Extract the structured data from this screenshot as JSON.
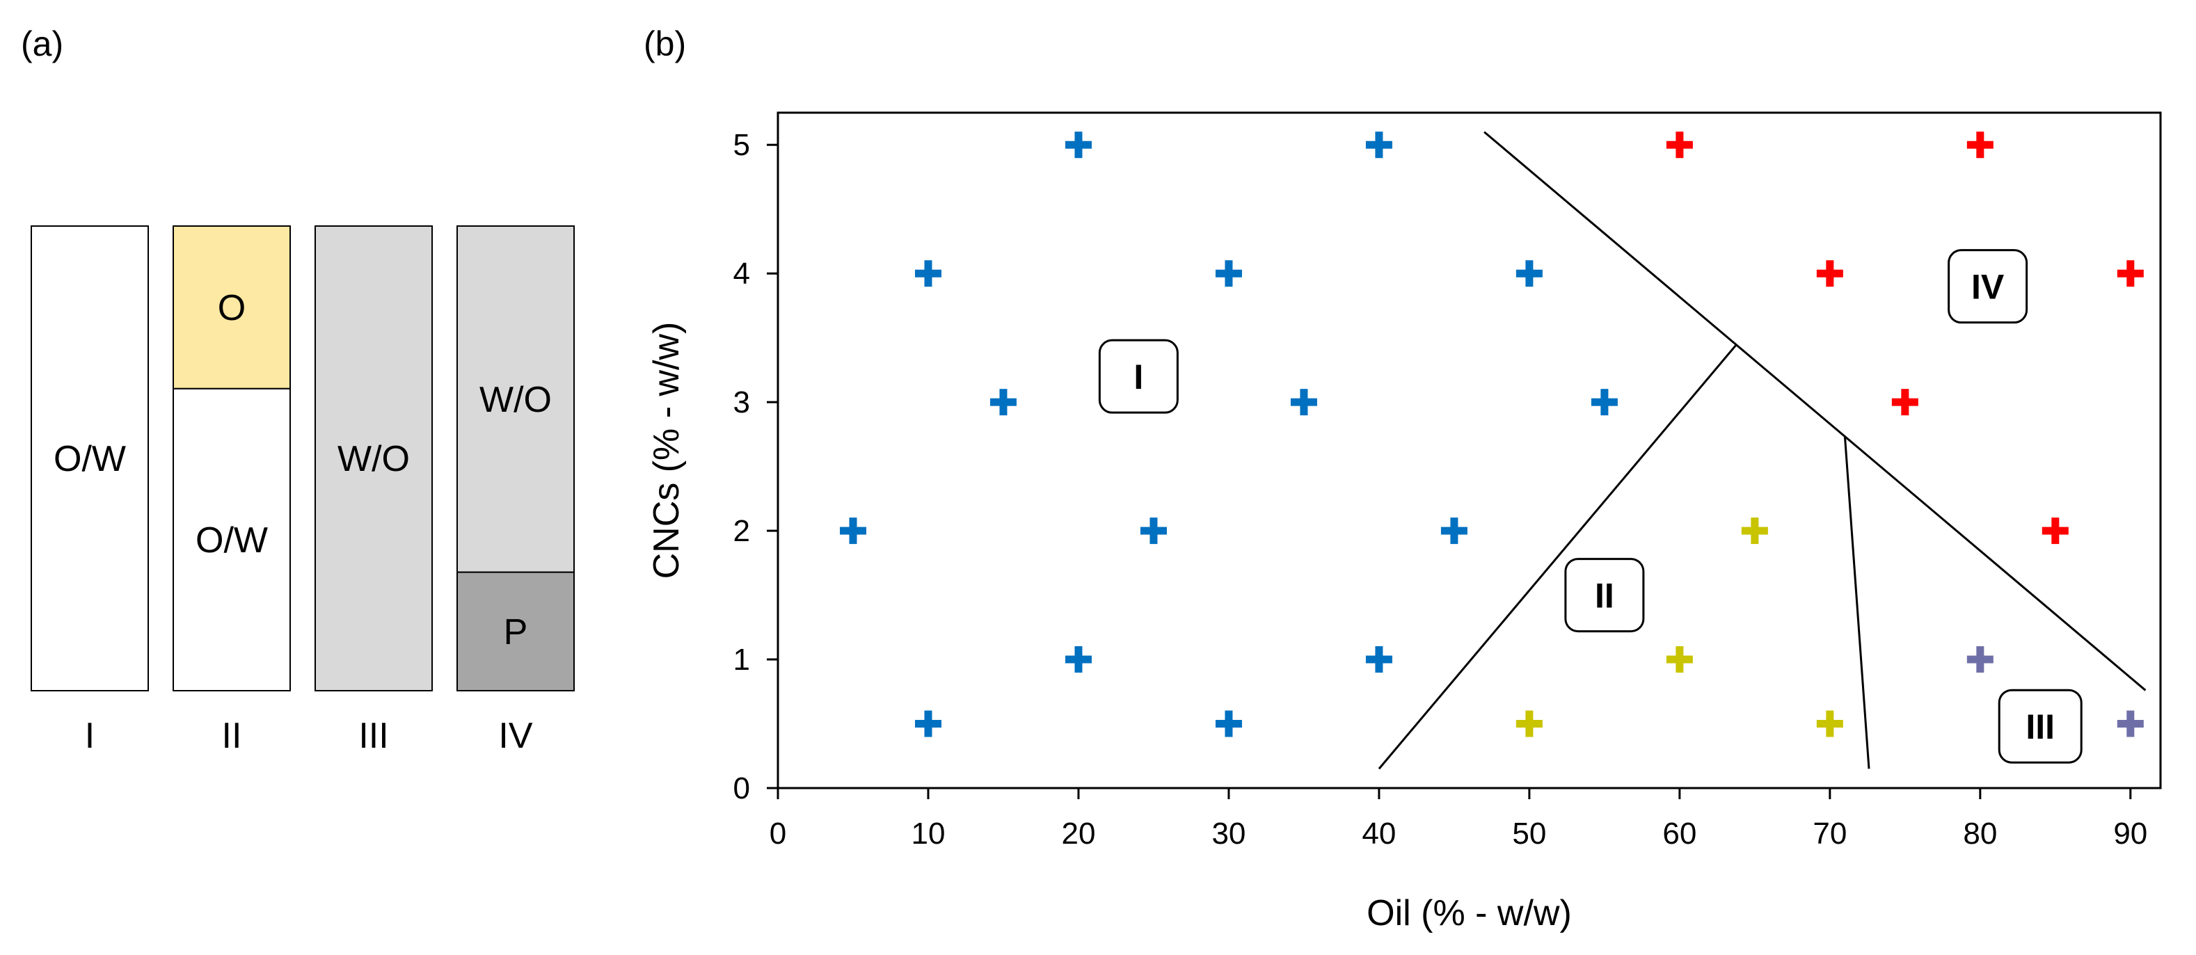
{
  "panel_a": {
    "label": "(a)",
    "tubes": [
      {
        "id": "I",
        "numeral": "I",
        "layers": [
          {
            "text": "O/W",
            "fraction": 1.0,
            "color": "#ffffff"
          }
        ]
      },
      {
        "id": "II",
        "numeral": "II",
        "layers": [
          {
            "text": "O",
            "fraction": 0.35,
            "color": "#fde9a3"
          },
          {
            "text": "O/W",
            "fraction": 0.65,
            "color": "#ffffff"
          }
        ]
      },
      {
        "id": "III",
        "numeral": "III",
        "layers": [
          {
            "text": "W/O",
            "fraction": 1.0,
            "color": "#d9d9d9"
          }
        ]
      },
      {
        "id": "IV",
        "numeral": "IV",
        "layers": [
          {
            "text": "W/O",
            "fraction": 0.745,
            "color": "#d9d9d9"
          },
          {
            "text": "P",
            "fraction": 0.255,
            "color": "#a6a6a6"
          }
        ]
      }
    ]
  },
  "chart_data": {
    "type": "scatter",
    "panel_label": "(b)",
    "title": "",
    "xlabel": "Oil (% - w/w)",
    "ylabel": "CNCs (% - w/w)",
    "xlim": [
      0,
      92
    ],
    "ylim": [
      0,
      5.25
    ],
    "xticks": [
      "0",
      "10",
      "20",
      "30",
      "40",
      "50",
      "60",
      "70",
      "80",
      "90"
    ],
    "yticks": [
      "0",
      "1",
      "2",
      "3",
      "4",
      "5"
    ],
    "grid": false,
    "marker": "plus",
    "colors": {
      "I": "#0070c0",
      "II": "#c9c400",
      "III": "#6f6fa8",
      "IV": "#ff0000"
    },
    "points": [
      {
        "x": 20,
        "y": 5,
        "region": "I"
      },
      {
        "x": 40,
        "y": 5,
        "region": "I"
      },
      {
        "x": 10,
        "y": 4,
        "region": "I"
      },
      {
        "x": 30,
        "y": 4,
        "region": "I"
      },
      {
        "x": 50,
        "y": 4,
        "region": "I"
      },
      {
        "x": 15,
        "y": 3,
        "region": "I"
      },
      {
        "x": 35,
        "y": 3,
        "region": "I"
      },
      {
        "x": 55,
        "y": 3,
        "region": "I"
      },
      {
        "x": 5,
        "y": 2,
        "region": "I"
      },
      {
        "x": 25,
        "y": 2,
        "region": "I"
      },
      {
        "x": 45,
        "y": 2,
        "region": "I"
      },
      {
        "x": 20,
        "y": 1,
        "region": "I"
      },
      {
        "x": 40,
        "y": 1,
        "region": "I"
      },
      {
        "x": 10,
        "y": 0.5,
        "region": "I"
      },
      {
        "x": 30,
        "y": 0.5,
        "region": "I"
      },
      {
        "x": 65,
        "y": 2,
        "region": "II"
      },
      {
        "x": 60,
        "y": 1,
        "region": "II"
      },
      {
        "x": 50,
        "y": 0.5,
        "region": "II"
      },
      {
        "x": 70,
        "y": 0.5,
        "region": "II"
      },
      {
        "x": 80,
        "y": 1,
        "region": "III"
      },
      {
        "x": 90,
        "y": 0.5,
        "region": "III"
      },
      {
        "x": 60,
        "y": 5,
        "region": "IV"
      },
      {
        "x": 80,
        "y": 5,
        "region": "IV"
      },
      {
        "x": 70,
        "y": 4,
        "region": "IV"
      },
      {
        "x": 90,
        "y": 4,
        "region": "IV"
      },
      {
        "x": 75,
        "y": 3,
        "region": "IV"
      },
      {
        "x": 85,
        "y": 2,
        "region": "IV"
      }
    ],
    "boundaries": [
      {
        "name": "IV-boundary",
        "points": [
          [
            47,
            5.1
          ],
          [
            91,
            0.76
          ]
        ]
      },
      {
        "name": "I-II-boundary",
        "points": [
          [
            40,
            0.15
          ],
          [
            63.8,
            3.45
          ]
        ]
      },
      {
        "name": "II-III-boundary",
        "points": [
          [
            71,
            2.73
          ],
          [
            72.6,
            0.15
          ]
        ]
      }
    ],
    "region_labels": [
      {
        "text": "I",
        "x": 24,
        "y": 3.2
      },
      {
        "text": "II",
        "x": 55,
        "y": 1.5
      },
      {
        "text": "III",
        "x": 84,
        "y": 0.48
      },
      {
        "text": "IV",
        "x": 80.5,
        "y": 3.9
      }
    ]
  }
}
